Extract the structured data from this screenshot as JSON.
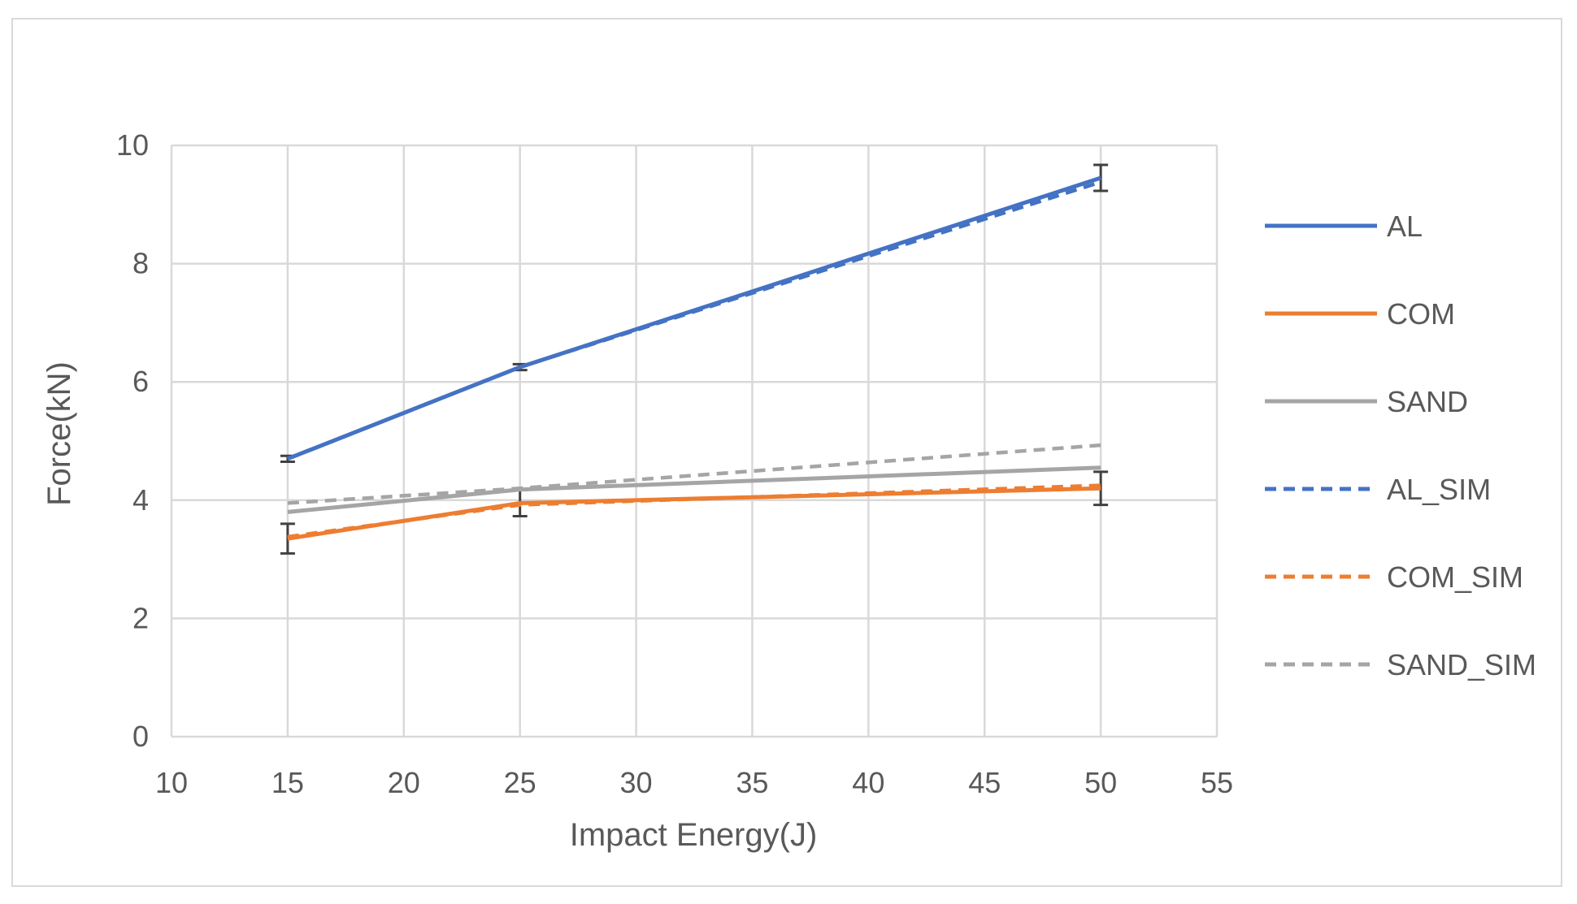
{
  "chart_data": {
    "type": "line",
    "title": "",
    "xlabel": "Impact Energy(J)",
    "ylabel": "Force(kN)",
    "xlim": [
      10,
      55
    ],
    "ylim": [
      0,
      10
    ],
    "xticks": [
      10,
      15,
      20,
      25,
      30,
      35,
      40,
      45,
      50,
      55
    ],
    "yticks": [
      0,
      2,
      4,
      6,
      8,
      10
    ],
    "grid": true,
    "legend_position": "right",
    "x": [
      15,
      25,
      50
    ],
    "series": [
      {
        "name": "AL",
        "values": [
          4.7,
          6.25,
          9.45
        ],
        "color": "#4472c4",
        "dash": false,
        "error": [
          0.05,
          0.05,
          0.22
        ]
      },
      {
        "name": "COM",
        "values": [
          3.35,
          3.95,
          4.2
        ],
        "color": "#ed7d31",
        "dash": false,
        "error": [
          0.25,
          0.22,
          0.28
        ]
      },
      {
        "name": "SAND",
        "values": [
          3.8,
          4.18,
          4.55
        ],
        "color": "#a5a5a5",
        "dash": false,
        "error": null
      },
      {
        "name": "AL_SIM",
        "values": [
          4.7,
          6.25,
          9.38
        ],
        "color": "#4472c4",
        "dash": true,
        "error": null
      },
      {
        "name": "COM_SIM",
        "values": [
          3.38,
          3.92,
          4.25
        ],
        "color": "#ed7d31",
        "dash": true,
        "error": null
      },
      {
        "name": "SAND_SIM",
        "values": [
          3.95,
          4.2,
          4.93
        ],
        "color": "#a5a5a5",
        "dash": true,
        "error": null
      }
    ]
  }
}
